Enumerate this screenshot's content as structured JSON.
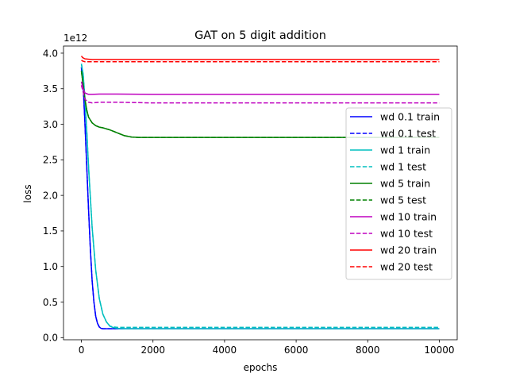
{
  "chart_data": {
    "type": "line",
    "title": "GAT on 5 digit addition",
    "xlabel": "epochs",
    "ylabel": "loss",
    "y_offset_label": "1e12",
    "xlim": [
      -500,
      10500
    ],
    "ylim": [
      -0.03,
      4.1
    ],
    "xticks": [
      0,
      2000,
      4000,
      6000,
      8000,
      10000
    ],
    "xtick_labels": [
      "0",
      "2000",
      "4000",
      "6000",
      "8000",
      "10000"
    ],
    "yticks": [
      0.0,
      0.5,
      1.0,
      1.5,
      2.0,
      2.5,
      3.0,
      3.5,
      4.0
    ],
    "ytick_labels": [
      "0.0",
      "0.5",
      "1.0",
      "1.5",
      "2.0",
      "2.5",
      "3.0",
      "3.5",
      "4.0"
    ],
    "y_unit_scale": 1000000000000.0,
    "grid": false,
    "legend_position": "center-right",
    "series": [
      {
        "name": "wd 0.1 train",
        "color": "#0000ff",
        "dash": "solid",
        "x": [
          0,
          50,
          100,
          150,
          200,
          250,
          300,
          350,
          400,
          450,
          500,
          550,
          600,
          700,
          800,
          1000,
          2000,
          4000,
          6000,
          8000,
          10000
        ],
        "y": [
          3.8,
          3.55,
          3.0,
          2.4,
          1.8,
          1.25,
          0.8,
          0.5,
          0.3,
          0.2,
          0.15,
          0.13,
          0.125,
          0.125,
          0.125,
          0.125,
          0.125,
          0.125,
          0.125,
          0.125,
          0.125
        ]
      },
      {
        "name": "wd 0.1 test",
        "color": "#0000ff",
        "dash": "dashed",
        "x": [
          0,
          50,
          100,
          150,
          200,
          250,
          300,
          350,
          400,
          450,
          500,
          550,
          600,
          700,
          800,
          1000,
          2000,
          4000,
          6000,
          8000,
          10000
        ],
        "y": [
          3.8,
          3.55,
          3.0,
          2.4,
          1.8,
          1.25,
          0.8,
          0.5,
          0.3,
          0.2,
          0.15,
          0.13,
          0.125,
          0.125,
          0.125,
          0.125,
          0.125,
          0.125,
          0.125,
          0.125,
          0.125
        ]
      },
      {
        "name": "wd 1 train",
        "color": "#00bfbf",
        "dash": "solid",
        "x": [
          0,
          50,
          100,
          150,
          200,
          300,
          400,
          500,
          600,
          700,
          800,
          900,
          1000,
          1200,
          2000,
          4000,
          6000,
          8000,
          10000
        ],
        "y": [
          3.85,
          3.7,
          3.35,
          2.9,
          2.4,
          1.55,
          0.95,
          0.55,
          0.33,
          0.22,
          0.16,
          0.14,
          0.13,
          0.125,
          0.125,
          0.125,
          0.125,
          0.125,
          0.125
        ]
      },
      {
        "name": "wd 1 test",
        "color": "#00bfbf",
        "dash": "dashed",
        "x": [
          0,
          50,
          100,
          150,
          200,
          300,
          400,
          500,
          600,
          700,
          800,
          900,
          1000,
          1200,
          2000,
          4000,
          6000,
          8000,
          10000
        ],
        "y": [
          3.85,
          3.7,
          3.35,
          2.9,
          2.4,
          1.55,
          0.95,
          0.55,
          0.33,
          0.22,
          0.16,
          0.15,
          0.145,
          0.145,
          0.145,
          0.145,
          0.145,
          0.145,
          0.145
        ]
      },
      {
        "name": "wd 5 train",
        "color": "#008000",
        "dash": "solid",
        "x": [
          0,
          50,
          100,
          150,
          200,
          300,
          400,
          500,
          600,
          800,
          1000,
          1200,
          1400,
          1600,
          2000,
          4000,
          6000,
          8000,
          10000
        ],
        "y": [
          3.75,
          3.55,
          3.35,
          3.2,
          3.1,
          3.02,
          2.98,
          2.96,
          2.95,
          2.92,
          2.88,
          2.84,
          2.82,
          2.815,
          2.815,
          2.815,
          2.815,
          2.815,
          2.815
        ]
      },
      {
        "name": "wd 5 test",
        "color": "#008000",
        "dash": "dashed",
        "x": [
          0,
          50,
          100,
          150,
          200,
          300,
          400,
          500,
          600,
          800,
          1000,
          1200,
          1400,
          1600,
          2000,
          4000,
          6000,
          8000,
          10000
        ],
        "y": [
          3.75,
          3.55,
          3.35,
          3.2,
          3.1,
          3.02,
          2.98,
          2.96,
          2.95,
          2.92,
          2.88,
          2.84,
          2.82,
          2.815,
          2.815,
          2.815,
          2.815,
          2.815,
          2.815
        ]
      },
      {
        "name": "wd 10 train",
        "color": "#bf00bf",
        "dash": "solid",
        "x": [
          0,
          50,
          100,
          200,
          300,
          500,
          1000,
          2000,
          4000,
          6000,
          8000,
          10000
        ],
        "y": [
          3.6,
          3.5,
          3.44,
          3.42,
          3.42,
          3.425,
          3.425,
          3.42,
          3.42,
          3.42,
          3.42,
          3.42
        ]
      },
      {
        "name": "wd 10 test",
        "color": "#bf00bf",
        "dash": "dashed",
        "x": [
          0,
          50,
          100,
          200,
          300,
          500,
          1000,
          2000,
          4000,
          6000,
          8000,
          10000
        ],
        "y": [
          3.55,
          3.45,
          3.35,
          3.31,
          3.3,
          3.31,
          3.31,
          3.3,
          3.3,
          3.3,
          3.3,
          3.3
        ]
      },
      {
        "name": "wd 20 train",
        "color": "#ff0000",
        "dash": "solid",
        "x": [
          0,
          30,
          60,
          100,
          200,
          300,
          500,
          1000,
          2000,
          4000,
          6000,
          8000,
          10000
        ],
        "y": [
          3.96,
          3.94,
          3.93,
          3.92,
          3.915,
          3.91,
          3.91,
          3.91,
          3.91,
          3.91,
          3.91,
          3.91,
          3.91
        ]
      },
      {
        "name": "wd 20 test",
        "color": "#ff0000",
        "dash": "dashed",
        "x": [
          0,
          30,
          60,
          100,
          200,
          300,
          500,
          1000,
          2000,
          4000,
          6000,
          8000,
          10000
        ],
        "y": [
          3.9,
          3.89,
          3.885,
          3.88,
          3.88,
          3.88,
          3.88,
          3.88,
          3.88,
          3.88,
          3.88,
          3.88,
          3.88
        ]
      }
    ]
  }
}
